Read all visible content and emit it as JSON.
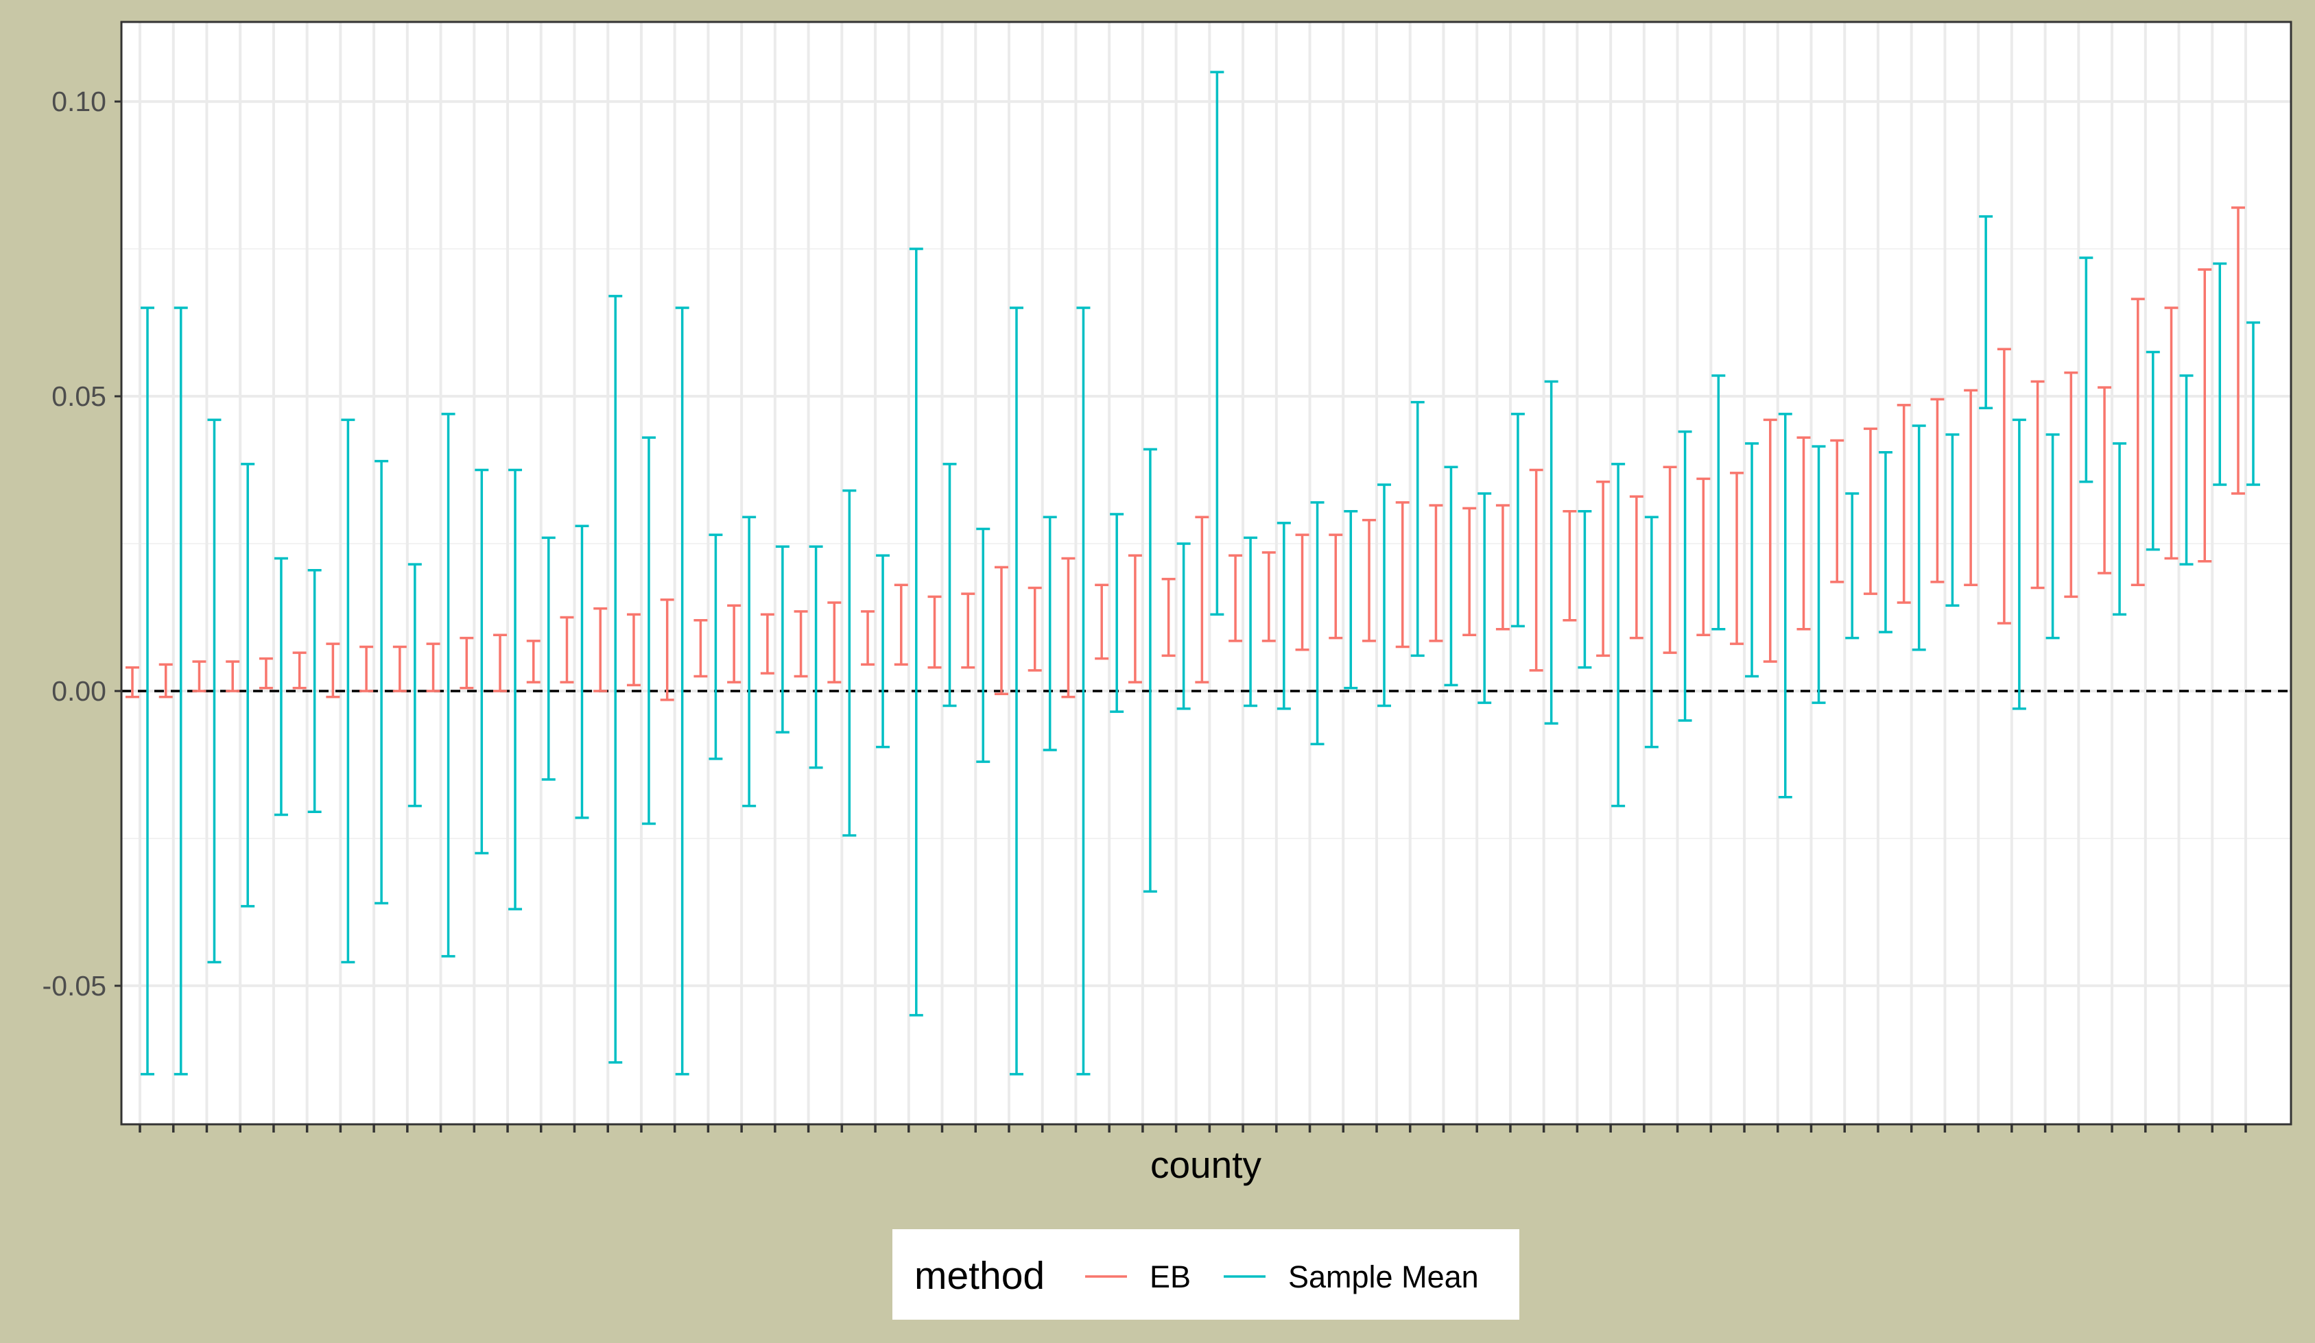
{
  "chart_data": {
    "type": "errorbar",
    "xlabel": "county",
    "ylabel": "",
    "ylim": [
      -0.0735,
      0.1135
    ],
    "yticks": [
      -0.05,
      0.0,
      0.05,
      0.1
    ],
    "ytick_labels": [
      "-0.05",
      "0.00",
      "0.05",
      "0.10"
    ],
    "reference_line": {
      "y": 0.0,
      "style": "dashed"
    },
    "grid": true,
    "legend": {
      "title": "method",
      "position": "bottom",
      "entries": [
        "EB",
        "Sample Mean"
      ]
    },
    "series": [
      {
        "name": "EB",
        "color": "#F8766D",
        "intervals": [
          [
            -0.001,
            0.004
          ],
          [
            -0.001,
            0.0045
          ],
          [
            0.0,
            0.005
          ],
          [
            0.0,
            0.005
          ],
          [
            0.0005,
            0.0055
          ],
          [
            0.0005,
            0.0065
          ],
          [
            -0.001,
            0.008
          ],
          [
            0.0,
            0.0075
          ],
          [
            0.0,
            0.0075
          ],
          [
            0.0,
            0.008
          ],
          [
            0.0005,
            0.009
          ],
          [
            0.0,
            0.0095
          ],
          [
            0.0015,
            0.0085
          ],
          [
            0.0015,
            0.0125
          ],
          [
            0.0,
            0.014
          ],
          [
            0.001,
            0.013
          ],
          [
            -0.0015,
            0.0155
          ],
          [
            0.0025,
            0.012
          ],
          [
            0.0015,
            0.0145
          ],
          [
            0.003,
            0.013
          ],
          [
            0.0025,
            0.0135
          ],
          [
            0.0015,
            0.015
          ],
          [
            0.0045,
            0.0135
          ],
          [
            0.0045,
            0.018
          ],
          [
            0.004,
            0.016
          ],
          [
            0.004,
            0.0165
          ],
          [
            -0.0005,
            0.021
          ],
          [
            0.0035,
            0.0175
          ],
          [
            -0.001,
            0.0225
          ],
          [
            0.0055,
            0.018
          ],
          [
            0.0015,
            0.023
          ],
          [
            0.006,
            0.019
          ],
          [
            0.0015,
            0.0295
          ],
          [
            0.0085,
            0.023
          ],
          [
            0.0085,
            0.0235
          ],
          [
            0.007,
            0.0265
          ],
          [
            0.009,
            0.0265
          ],
          [
            0.0085,
            0.029
          ],
          [
            0.0075,
            0.032
          ],
          [
            0.0085,
            0.0315
          ],
          [
            0.0095,
            0.031
          ],
          [
            0.0105,
            0.0315
          ],
          [
            0.0035,
            0.0375
          ],
          [
            0.012,
            0.0305
          ],
          [
            0.006,
            0.0355
          ],
          [
            0.009,
            0.033
          ],
          [
            0.0065,
            0.038
          ],
          [
            0.0095,
            0.036
          ],
          [
            0.008,
            0.037
          ],
          [
            0.005,
            0.046
          ],
          [
            0.0105,
            0.043
          ],
          [
            0.0185,
            0.0425
          ],
          [
            0.0165,
            0.0445
          ],
          [
            0.015,
            0.0485
          ],
          [
            0.0185,
            0.0495
          ],
          [
            0.018,
            0.051
          ],
          [
            0.0115,
            0.058
          ],
          [
            0.0175,
            0.0525
          ],
          [
            0.016,
            0.054
          ],
          [
            0.02,
            0.0515
          ],
          [
            0.018,
            0.0665
          ],
          [
            0.0225,
            0.065
          ],
          [
            0.022,
            0.0715
          ],
          [
            0.0335,
            0.082
          ]
        ]
      },
      {
        "name": "Sample Mean",
        "color": "#00BFC4",
        "intervals": [
          [
            -0.065,
            0.065
          ],
          [
            -0.065,
            0.065
          ],
          [
            -0.046,
            0.046
          ],
          [
            -0.0365,
            0.0385
          ],
          [
            -0.021,
            0.0225
          ],
          [
            -0.0205,
            0.0205
          ],
          [
            -0.046,
            0.046
          ],
          [
            -0.036,
            0.039
          ],
          [
            -0.0195,
            0.0215
          ],
          [
            -0.045,
            0.047
          ],
          [
            -0.0275,
            0.0375
          ],
          [
            -0.037,
            0.0375
          ],
          [
            -0.015,
            0.026
          ],
          [
            -0.0215,
            0.028
          ],
          [
            -0.063,
            0.067
          ],
          [
            -0.0225,
            0.043
          ],
          [
            -0.065,
            0.065
          ],
          [
            -0.0115,
            0.0265
          ],
          [
            -0.0195,
            0.0295
          ],
          [
            -0.007,
            0.0245
          ],
          [
            -0.013,
            0.0245
          ],
          [
            -0.0245,
            0.034
          ],
          [
            -0.0095,
            0.023
          ],
          [
            -0.055,
            0.075
          ],
          [
            -0.0025,
            0.0385
          ],
          [
            -0.012,
            0.0275
          ],
          [
            -0.065,
            0.065
          ],
          [
            -0.01,
            0.0295
          ],
          [
            -0.065,
            0.065
          ],
          [
            -0.0035,
            0.03
          ],
          [
            -0.034,
            0.041
          ],
          [
            -0.003,
            0.025
          ],
          [
            0.013,
            0.105
          ],
          [
            -0.0025,
            0.026
          ],
          [
            -0.003,
            0.0285
          ],
          [
            -0.009,
            0.032
          ],
          [
            0.0005,
            0.0305
          ],
          [
            -0.0025,
            0.035
          ],
          [
            0.006,
            0.049
          ],
          [
            0.001,
            0.038
          ],
          [
            -0.002,
            0.0335
          ],
          [
            0.011,
            0.047
          ],
          [
            -0.0055,
            0.0525
          ],
          [
            0.004,
            0.0305
          ],
          [
            -0.0195,
            0.0385
          ],
          [
            -0.0095,
            0.0295
          ],
          [
            -0.005,
            0.044
          ],
          [
            0.0105,
            0.0535
          ],
          [
            0.0025,
            0.042
          ],
          [
            -0.018,
            0.047
          ],
          [
            -0.002,
            0.0415
          ],
          [
            0.009,
            0.0335
          ],
          [
            0.01,
            0.0405
          ],
          [
            0.007,
            0.045
          ],
          [
            0.0145,
            0.0435
          ],
          [
            0.048,
            0.0805
          ],
          [
            -0.003,
            0.046
          ],
          [
            0.009,
            0.0435
          ],
          [
            0.0355,
            0.0735
          ],
          [
            0.013,
            0.042
          ],
          [
            0.024,
            0.0575
          ],
          [
            0.0215,
            0.0535
          ],
          [
            0.035,
            0.0725
          ],
          [
            0.035,
            0.0625
          ]
        ]
      }
    ]
  }
}
